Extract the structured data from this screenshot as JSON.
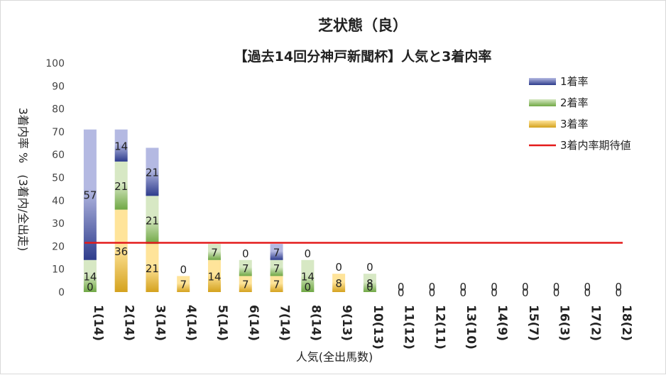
{
  "chart_data": {
    "type": "bar",
    "stacked": true,
    "title": "芝状態（良）",
    "subtitle": "【過去14回分神戸新聞杯】人気と3着内率",
    "xlabel": "人気(全出馬数)",
    "ylabel": "3着内率 %　(3着内/全出走)",
    "ylim": [
      0,
      100
    ],
    "yticks": [
      0,
      10,
      20,
      30,
      40,
      50,
      60,
      70,
      80,
      90,
      100
    ],
    "categories": [
      "1(14)",
      "2(14)",
      "3(14)",
      "4(14)",
      "5(14)",
      "6(14)",
      "7(14)",
      "8(14)",
      "9(13)",
      "10(13)",
      "11(12)",
      "12(11)",
      "13(10)",
      "14(9)",
      "15(7)",
      "16(3)",
      "17(2)",
      "18(2)"
    ],
    "series": [
      {
        "name": "3着率",
        "color": "#d4a21e",
        "values": [
          0,
          36,
          21,
          7,
          14,
          7,
          7,
          0,
          8,
          0,
          0,
          0,
          0,
          0,
          0,
          0,
          0,
          0
        ]
      },
      {
        "name": "2着率",
        "color": "#70a845",
        "values": [
          14,
          21,
          21,
          0,
          7,
          7,
          7,
          14,
          0,
          8,
          0,
          0,
          0,
          0,
          0,
          0,
          0,
          0
        ]
      },
      {
        "name": "1着率",
        "color": "#2e3c8c",
        "values": [
          57,
          14,
          21,
          0,
          0,
          0,
          7,
          0,
          0,
          0,
          0,
          0,
          0,
          0,
          0,
          0,
          0,
          0
        ]
      }
    ],
    "reference_line": {
      "name": "3着内率期待値",
      "value": 21.5,
      "color": "#e41a1a"
    },
    "legend": [
      "1着率",
      "2着率",
      "3着率",
      "3着内率期待値"
    ],
    "legend_position": "top-right",
    "grid": false
  }
}
